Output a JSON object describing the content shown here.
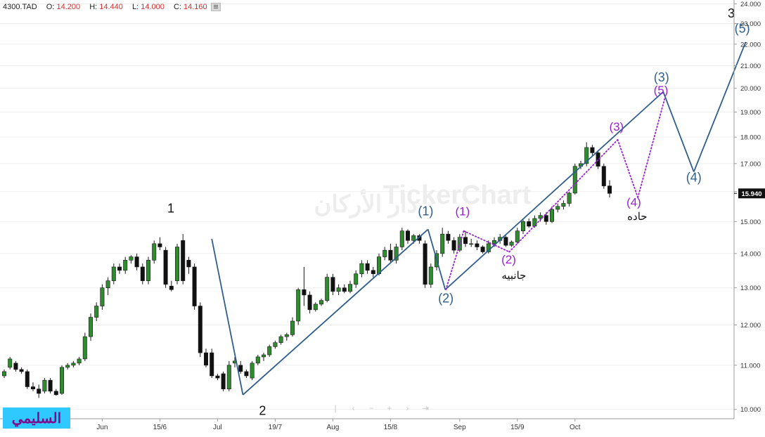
{
  "header": {
    "symbol": "4300.TAD",
    "open_label": "O:",
    "open": "14.200",
    "high_label": "H:",
    "high": "14.440",
    "low_label": "L:",
    "low": "14.000",
    "close_label": "C:",
    "close": "14.160"
  },
  "watermark": "TickerChart",
  "watermark_arabic": "دار الأركان",
  "brand_label": "السليمي",
  "last_price_label": "15.940",
  "navigation": {
    "first": "|",
    "prev": "‹",
    "zoom_out": "−",
    "zoom_in": "+",
    "next": "›",
    "last": "⇥"
  },
  "chart_data": {
    "type": "candlestick",
    "symbol": "4300.TAD",
    "y_ticks": [
      "10.000",
      "11.000",
      "12.000",
      "13.000",
      "14.000",
      "15.000",
      "16.000",
      "17.000",
      "18.000",
      "19.000",
      "20.000",
      "21.000",
      "22.000",
      "23.000",
      "24.000"
    ],
    "y_scale": "log",
    "ylim": [
      9.8,
      24.2
    ],
    "last_price": 15.94,
    "x_labels": [
      {
        "label": "Jun",
        "index": 17
      },
      {
        "label": "15/6",
        "index": 27
      },
      {
        "label": "Jul",
        "index": 37
      },
      {
        "label": "19/7",
        "index": 47
      },
      {
        "label": "Aug",
        "index": 57
      },
      {
        "label": "15/8",
        "index": 67
      },
      {
        "label": "Sep",
        "index": 79
      },
      {
        "label": "15/9",
        "index": 89
      },
      {
        "label": "Oct",
        "index": 99
      }
    ],
    "candles": [
      {
        "o": 10.75,
        "h": 10.9,
        "l": 10.7,
        "c": 10.85
      },
      {
        "o": 10.95,
        "h": 11.2,
        "l": 10.9,
        "c": 11.15
      },
      {
        "o": 11.05,
        "h": 11.1,
        "l": 10.85,
        "c": 10.9
      },
      {
        "o": 10.9,
        "h": 10.95,
        "l": 10.8,
        "c": 10.85
      },
      {
        "o": 10.85,
        "h": 10.9,
        "l": 10.45,
        "c": 10.5
      },
      {
        "o": 10.5,
        "h": 10.6,
        "l": 10.4,
        "c": 10.45
      },
      {
        "o": 10.45,
        "h": 10.55,
        "l": 10.25,
        "c": 10.35
      },
      {
        "o": 10.4,
        "h": 10.7,
        "l": 10.35,
        "c": 10.65
      },
      {
        "o": 10.65,
        "h": 10.7,
        "l": 10.35,
        "c": 10.4
      },
      {
        "o": 10.4,
        "h": 10.45,
        "l": 10.3,
        "c": 10.32
      },
      {
        "o": 10.35,
        "h": 11.0,
        "l": 10.32,
        "c": 10.95
      },
      {
        "o": 10.95,
        "h": 11.05,
        "l": 10.9,
        "c": 11.0
      },
      {
        "o": 11.0,
        "h": 11.1,
        "l": 10.95,
        "c": 11.05
      },
      {
        "o": 11.05,
        "h": 11.2,
        "l": 11.0,
        "c": 11.15
      },
      {
        "o": 11.15,
        "h": 11.8,
        "l": 11.1,
        "c": 11.7
      },
      {
        "o": 11.7,
        "h": 12.3,
        "l": 11.6,
        "c": 12.2
      },
      {
        "o": 12.2,
        "h": 12.6,
        "l": 12.1,
        "c": 12.5
      },
      {
        "o": 12.5,
        "h": 13.1,
        "l": 12.4,
        "c": 13.0
      },
      {
        "o": 13.0,
        "h": 13.3,
        "l": 12.8,
        "c": 13.2
      },
      {
        "o": 13.2,
        "h": 13.7,
        "l": 13.1,
        "c": 13.6
      },
      {
        "o": 13.6,
        "h": 13.7,
        "l": 13.4,
        "c": 13.5
      },
      {
        "o": 13.5,
        "h": 13.9,
        "l": 13.4,
        "c": 13.8
      },
      {
        "o": 13.8,
        "h": 13.95,
        "l": 13.7,
        "c": 13.9
      },
      {
        "o": 13.9,
        "h": 14.0,
        "l": 13.5,
        "c": 13.6
      },
      {
        "o": 13.6,
        "h": 13.7,
        "l": 13.1,
        "c": 13.2
      },
      {
        "o": 13.2,
        "h": 13.9,
        "l": 13.1,
        "c": 13.8
      },
      {
        "o": 13.8,
        "h": 14.4,
        "l": 13.7,
        "c": 14.3
      },
      {
        "o": 14.3,
        "h": 14.5,
        "l": 14.1,
        "c": 14.2
      },
      {
        "o": 14.1,
        "h": 14.2,
        "l": 13.0,
        "c": 13.1
      },
      {
        "o": 13.05,
        "h": 13.2,
        "l": 12.9,
        "c": 12.95
      },
      {
        "o": 13.2,
        "h": 14.3,
        "l": 13.1,
        "c": 14.2
      },
      {
        "o": 14.4,
        "h": 14.6,
        "l": 13.1,
        "c": 13.2
      },
      {
        "o": 13.8,
        "h": 13.9,
        "l": 13.4,
        "c": 13.6
      },
      {
        "o": 13.6,
        "h": 13.7,
        "l": 12.4,
        "c": 12.5
      },
      {
        "o": 12.5,
        "h": 12.6,
        "l": 11.2,
        "c": 11.3
      },
      {
        "o": 11.3,
        "h": 11.4,
        "l": 10.95,
        "c": 11.0
      },
      {
        "o": 11.3,
        "h": 11.4,
        "l": 10.7,
        "c": 10.75
      },
      {
        "o": 10.75,
        "h": 10.8,
        "l": 10.65,
        "c": 10.7
      },
      {
        "o": 10.8,
        "h": 10.85,
        "l": 10.4,
        "c": 10.45
      },
      {
        "o": 10.45,
        "h": 11.1,
        "l": 10.4,
        "c": 11.0
      },
      {
        "o": 11.05,
        "h": 11.2,
        "l": 10.95,
        "c": 11.1
      },
      {
        "o": 11.0,
        "h": 11.1,
        "l": 10.8,
        "c": 10.85
      },
      {
        "o": 10.85,
        "h": 10.9,
        "l": 10.7,
        "c": 10.75
      },
      {
        "o": 10.7,
        "h": 11.1,
        "l": 10.65,
        "c": 11.05
      },
      {
        "o": 11.05,
        "h": 11.25,
        "l": 11.0,
        "c": 11.2
      },
      {
        "o": 11.2,
        "h": 11.3,
        "l": 11.1,
        "c": 11.25
      },
      {
        "o": 11.25,
        "h": 11.5,
        "l": 11.2,
        "c": 11.45
      },
      {
        "o": 11.45,
        "h": 11.6,
        "l": 11.4,
        "c": 11.55
      },
      {
        "o": 11.55,
        "h": 11.75,
        "l": 11.5,
        "c": 11.7
      },
      {
        "o": 11.7,
        "h": 11.8,
        "l": 11.6,
        "c": 11.75
      },
      {
        "o": 11.75,
        "h": 12.2,
        "l": 11.7,
        "c": 12.1
      },
      {
        "o": 12.1,
        "h": 13.0,
        "l": 12.0,
        "c": 12.95
      },
      {
        "o": 12.95,
        "h": 13.6,
        "l": 12.5,
        "c": 12.8
      },
      {
        "o": 12.8,
        "h": 12.9,
        "l": 12.3,
        "c": 12.4
      },
      {
        "o": 12.4,
        "h": 12.6,
        "l": 12.35,
        "c": 12.55
      },
      {
        "o": 12.55,
        "h": 12.7,
        "l": 12.5,
        "c": 12.65
      },
      {
        "o": 12.65,
        "h": 13.4,
        "l": 12.6,
        "c": 13.3
      },
      {
        "o": 13.3,
        "h": 13.4,
        "l": 12.8,
        "c": 12.9
      },
      {
        "o": 12.9,
        "h": 13.1,
        "l": 12.8,
        "c": 13.0
      },
      {
        "o": 13.0,
        "h": 13.1,
        "l": 12.85,
        "c": 12.9
      },
      {
        "o": 12.9,
        "h": 13.2,
        "l": 12.85,
        "c": 13.1
      },
      {
        "o": 13.1,
        "h": 13.5,
        "l": 13.0,
        "c": 13.4
      },
      {
        "o": 13.4,
        "h": 13.8,
        "l": 13.3,
        "c": 13.7
      },
      {
        "o": 13.7,
        "h": 13.8,
        "l": 13.4,
        "c": 13.5
      },
      {
        "o": 13.5,
        "h": 13.6,
        "l": 13.3,
        "c": 13.4
      },
      {
        "o": 13.4,
        "h": 14.0,
        "l": 13.35,
        "c": 13.9
      },
      {
        "o": 13.9,
        "h": 14.2,
        "l": 13.8,
        "c": 14.1
      },
      {
        "o": 14.1,
        "h": 14.3,
        "l": 13.7,
        "c": 13.8
      },
      {
        "o": 13.8,
        "h": 14.3,
        "l": 13.7,
        "c": 14.2
      },
      {
        "o": 14.2,
        "h": 14.8,
        "l": 14.1,
        "c": 14.7
      },
      {
        "o": 14.7,
        "h": 14.75,
        "l": 14.3,
        "c": 14.4
      },
      {
        "o": 14.4,
        "h": 14.6,
        "l": 14.3,
        "c": 14.55
      },
      {
        "o": 14.55,
        "h": 14.6,
        "l": 14.3,
        "c": 14.4
      },
      {
        "o": 14.3,
        "h": 14.4,
        "l": 13.0,
        "c": 13.1
      },
      {
        "o": 13.1,
        "h": 13.7,
        "l": 13.0,
        "c": 13.6
      },
      {
        "o": 13.6,
        "h": 14.1,
        "l": 13.5,
        "c": 14.0
      },
      {
        "o": 14.0,
        "h": 14.8,
        "l": 13.9,
        "c": 14.6
      },
      {
        "o": 14.6,
        "h": 14.7,
        "l": 14.3,
        "c": 14.4
      },
      {
        "o": 14.4,
        "h": 14.5,
        "l": 14.0,
        "c": 14.1
      },
      {
        "o": 14.1,
        "h": 14.6,
        "l": 14.05,
        "c": 14.5
      },
      {
        "o": 14.5,
        "h": 14.7,
        "l": 14.2,
        "c": 14.3
      },
      {
        "o": 14.3,
        "h": 14.45,
        "l": 14.2,
        "c": 14.3
      },
      {
        "o": 14.3,
        "h": 14.4,
        "l": 14.1,
        "c": 14.2
      },
      {
        "o": 14.2,
        "h": 14.25,
        "l": 14.0,
        "c": 14.05
      },
      {
        "o": 14.05,
        "h": 14.4,
        "l": 14.0,
        "c": 14.3
      },
      {
        "o": 14.3,
        "h": 14.5,
        "l": 14.2,
        "c": 14.4
      },
      {
        "o": 14.4,
        "h": 14.6,
        "l": 14.3,
        "c": 14.5
      },
      {
        "o": 14.5,
        "h": 14.55,
        "l": 14.2,
        "c": 14.25
      },
      {
        "o": 14.25,
        "h": 14.4,
        "l": 14.2,
        "c": 14.35
      },
      {
        "o": 14.35,
        "h": 14.8,
        "l": 14.3,
        "c": 14.7
      },
      {
        "o": 14.7,
        "h": 15.1,
        "l": 14.6,
        "c": 15.0
      },
      {
        "o": 15.0,
        "h": 15.1,
        "l": 14.8,
        "c": 14.85
      },
      {
        "o": 14.85,
        "h": 15.2,
        "l": 14.8,
        "c": 15.1
      },
      {
        "o": 15.1,
        "h": 15.3,
        "l": 15.0,
        "c": 15.2
      },
      {
        "o": 15.2,
        "h": 15.3,
        "l": 14.9,
        "c": 15.0
      },
      {
        "o": 15.0,
        "h": 15.5,
        "l": 14.95,
        "c": 15.4
      },
      {
        "o": 15.4,
        "h": 15.6,
        "l": 15.3,
        "c": 15.5
      },
      {
        "o": 15.5,
        "h": 15.7,
        "l": 15.4,
        "c": 15.6
      },
      {
        "o": 15.6,
        "h": 16.0,
        "l": 15.5,
        "c": 15.95
      },
      {
        "o": 15.95,
        "h": 17.0,
        "l": 15.9,
        "c": 16.9
      },
      {
        "o": 16.9,
        "h": 17.1,
        "l": 16.8,
        "c": 17.0
      },
      {
        "o": 17.0,
        "h": 17.8,
        "l": 16.9,
        "c": 17.6
      },
      {
        "o": 17.6,
        "h": 17.7,
        "l": 17.3,
        "c": 17.4
      },
      {
        "o": 17.4,
        "h": 17.5,
        "l": 16.8,
        "c": 16.9
      },
      {
        "o": 16.9,
        "h": 17.0,
        "l": 16.1,
        "c": 16.2
      },
      {
        "o": 16.2,
        "h": 16.4,
        "l": 15.8,
        "c": 15.94
      }
    ]
  },
  "annotations": {
    "major_wave_lines": [
      [
        [
          36.0,
          14.45
        ],
        [
          41.4,
          10.32
        ]
      ],
      [
        [
          41.4,
          10.32
        ],
        [
          73.5,
          14.75
        ]
      ],
      [
        [
          73.5,
          14.75
        ],
        [
          76.5,
          12.95
        ]
      ],
      [
        [
          76.5,
          12.95
        ],
        [
          114.3,
          19.85
        ]
      ],
      [
        [
          114.3,
          19.85
        ],
        [
          119.6,
          16.7
        ]
      ],
      [
        [
          119.6,
          16.7
        ],
        [
          128.6,
          22.1
        ]
      ]
    ],
    "minor_wave_lines": [
      [
        [
          76.6,
          12.95
        ],
        [
          79.7,
          14.7
        ]
      ],
      [
        [
          79.7,
          14.7
        ],
        [
          87.6,
          14.05
        ]
      ],
      [
        [
          87.6,
          14.05
        ],
        [
          106.4,
          17.9
        ]
      ],
      [
        [
          106.4,
          17.9
        ],
        [
          109.9,
          15.8
        ]
      ],
      [
        [
          109.9,
          15.8
        ],
        [
          114.6,
          19.6
        ]
      ]
    ],
    "labels": [
      {
        "text": "1",
        "x": 28.9,
        "y": 15.3,
        "style": "black"
      },
      {
        "text": "2",
        "x": 44.8,
        "y": 9.88,
        "style": "black"
      },
      {
        "text": "3",
        "x": 126.1,
        "y": 23.3,
        "style": "black"
      },
      {
        "text": "(1)",
        "x": 73.1,
        "y": 15.2,
        "style": "blue"
      },
      {
        "text": "(2)",
        "x": 76.6,
        "y": 12.6,
        "style": "blue"
      },
      {
        "text": "(3)",
        "x": 114.0,
        "y": 20.3,
        "style": "blue"
      },
      {
        "text": "(4)",
        "x": 119.6,
        "y": 16.35,
        "style": "blue"
      },
      {
        "text": "(5)",
        "x": 128.0,
        "y": 22.55,
        "style": "blue"
      },
      {
        "text": "(1)",
        "x": 79.5,
        "y": 15.2,
        "style": "purple"
      },
      {
        "text": "(2)",
        "x": 87.5,
        "y": 13.7,
        "style": "purple"
      },
      {
        "text": "(3)",
        "x": 106.2,
        "y": 18.25,
        "style": "purple"
      },
      {
        "text": "(4)",
        "x": 109.2,
        "y": 15.5,
        "style": "purple"
      },
      {
        "text": "(5)",
        "x": 113.9,
        "y": 19.75,
        "style": "purple"
      },
      {
        "text": "جانبيه",
        "x": 88.4,
        "y": 13.25,
        "style": "arabic"
      },
      {
        "text": "حاده",
        "x": 109.8,
        "y": 15.05,
        "style": "arabic"
      }
    ]
  }
}
